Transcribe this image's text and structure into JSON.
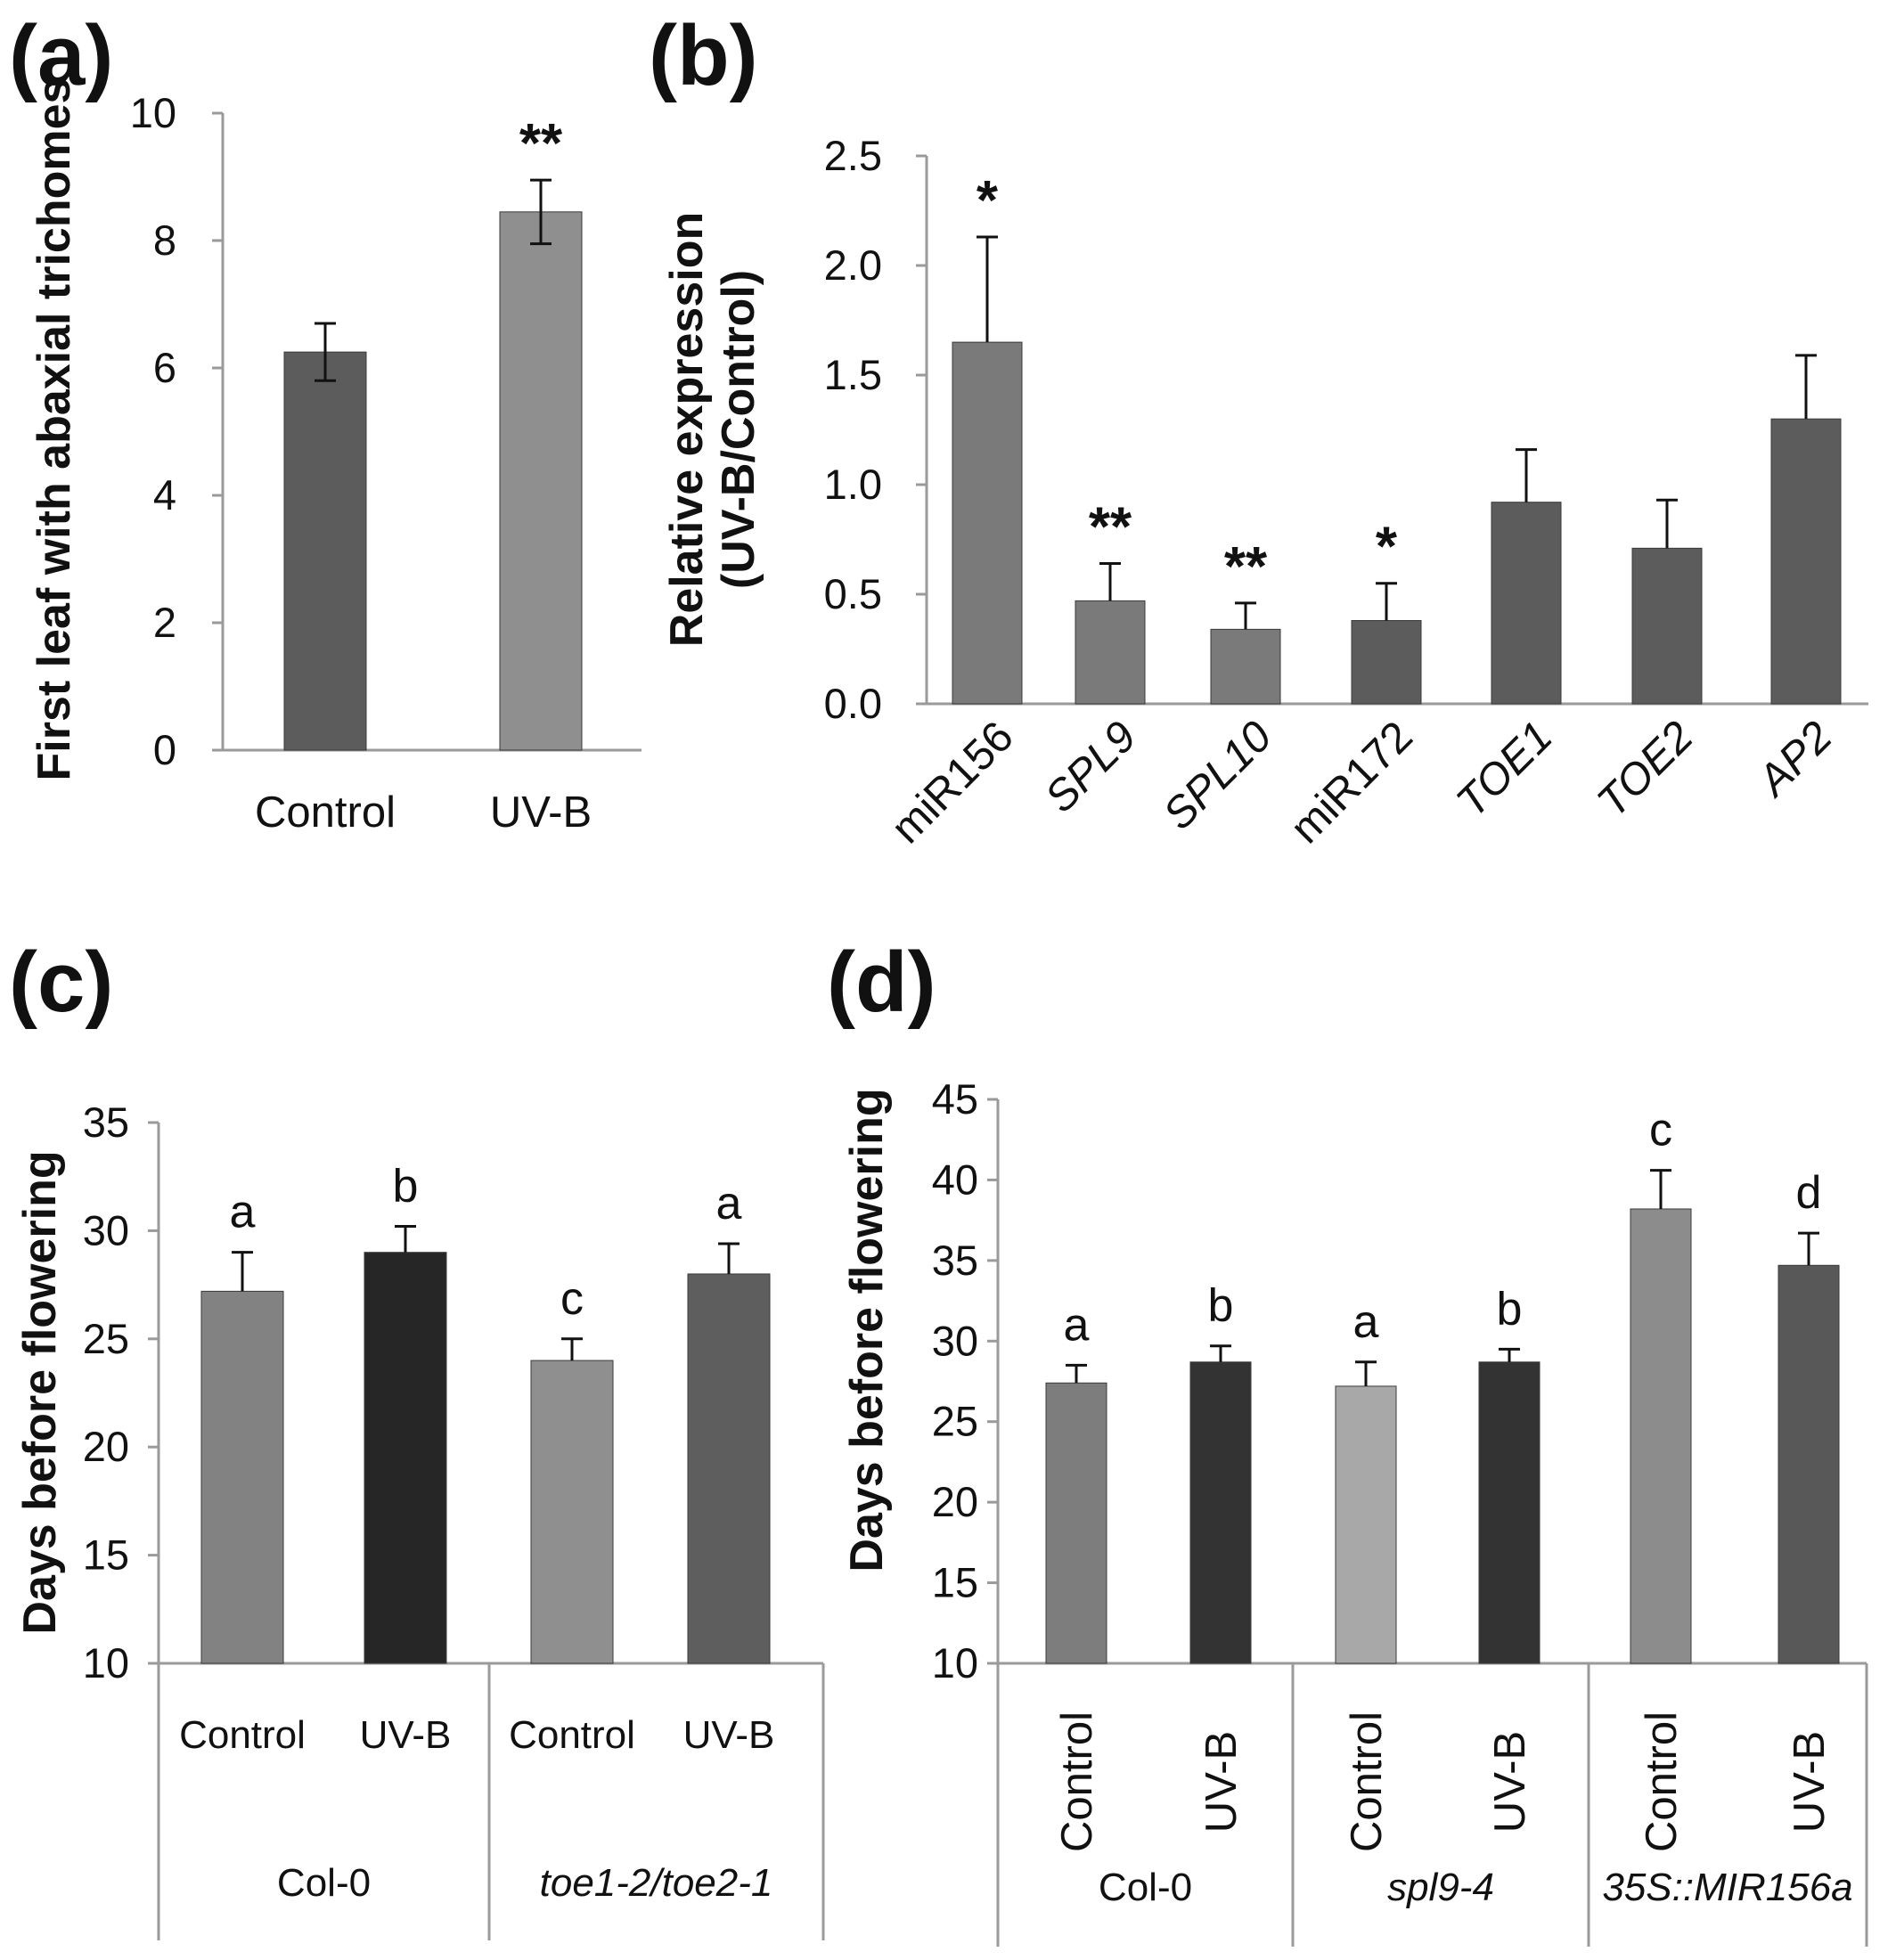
{
  "chart_data": [
    {
      "panel": "(a)",
      "type": "bar",
      "ylabel": "First leaf with abaxial trichomes",
      "ylim": [
        0,
        10
      ],
      "yticks": [
        "0",
        "2",
        "4",
        "6",
        "8",
        "10"
      ],
      "categories": [
        "Control",
        "UV-B"
      ],
      "values": [
        6.25,
        8.45
      ],
      "errors": [
        0.45,
        0.5
      ],
      "annotations": [
        "",
        "**"
      ],
      "colors": [
        "#5c5c5c",
        "#8f8f8f"
      ]
    },
    {
      "panel": "(b)",
      "type": "bar",
      "ylabel": "Relative expression (UV-B/Control)",
      "ylabel_lines": [
        "Relative expression",
        "(UV-B/Control)"
      ],
      "ylim": [
        0,
        2.5
      ],
      "yticks": [
        "0.0",
        "0.5",
        "1.0",
        "1.5",
        "2.0",
        "2.5"
      ],
      "categories": [
        "miR156",
        "SPL9",
        "SPL10",
        "miR172",
        "TOE1",
        "TOE2",
        "AP2"
      ],
      "italic": [
        false,
        true,
        true,
        false,
        true,
        true,
        true
      ],
      "values": [
        1.65,
        0.47,
        0.34,
        0.38,
        0.92,
        0.71,
        1.3
      ],
      "errors": [
        0.48,
        0.17,
        0.12,
        0.17,
        0.24,
        0.22,
        0.29
      ],
      "annotations": [
        "*",
        "**",
        "**",
        "*",
        "",
        "",
        ""
      ],
      "colors": [
        "#7a7a7a",
        "#7a7a7a",
        "#7a7a7a",
        "#5c5c5c",
        "#5c5c5c",
        "#5c5c5c",
        "#5c5c5c"
      ]
    },
    {
      "panel": "(c)",
      "type": "bar",
      "ylabel": "Days before flowering",
      "ylim": [
        10,
        35
      ],
      "yticks": [
        "10",
        "15",
        "20",
        "25",
        "30",
        "35"
      ],
      "categories": [
        "Control",
        "UV-B",
        "Control",
        "UV-B"
      ],
      "groups": [
        {
          "label": "Col-0",
          "italic": false,
          "span": [
            0,
            1
          ]
        },
        {
          "label": "toe1-2/toe2-1",
          "italic": true,
          "span": [
            2,
            3
          ]
        }
      ],
      "values": [
        27.2,
        29.0,
        24.0,
        28.0
      ],
      "errors": [
        1.8,
        1.2,
        1.0,
        1.4
      ],
      "annotations": [
        "a",
        "b",
        "c",
        "a"
      ],
      "colors": [
        "#828282",
        "#262626",
        "#8f8f8f",
        "#5e5e5e"
      ]
    },
    {
      "panel": "(d)",
      "type": "bar",
      "ylabel": "Days before flowering",
      "ylim": [
        10,
        45
      ],
      "yticks": [
        "10",
        "15",
        "20",
        "25",
        "30",
        "35",
        "40",
        "45"
      ],
      "categories": [
        "Control",
        "UV-B",
        "Control",
        "UV-B",
        "Control",
        "UV-B"
      ],
      "groups": [
        {
          "label": "Col-0",
          "italic": false,
          "span": [
            0,
            1
          ]
        },
        {
          "label": "spl9-4",
          "italic": true,
          "span": [
            2,
            3
          ]
        },
        {
          "label": "35S::MIR156a",
          "italic": true,
          "span": [
            4,
            5
          ]
        }
      ],
      "values": [
        27.4,
        28.7,
        27.2,
        28.7,
        38.2,
        34.7
      ],
      "errors": [
        1.1,
        1.0,
        1.5,
        0.8,
        2.4,
        2.0
      ],
      "annotations": [
        "a",
        "b",
        "a",
        "b",
        "c",
        "d"
      ],
      "colors": [
        "#7d7d7d",
        "#333333",
        "#a8a8a8",
        "#333333",
        "#8c8c8c",
        "#585858"
      ]
    }
  ]
}
